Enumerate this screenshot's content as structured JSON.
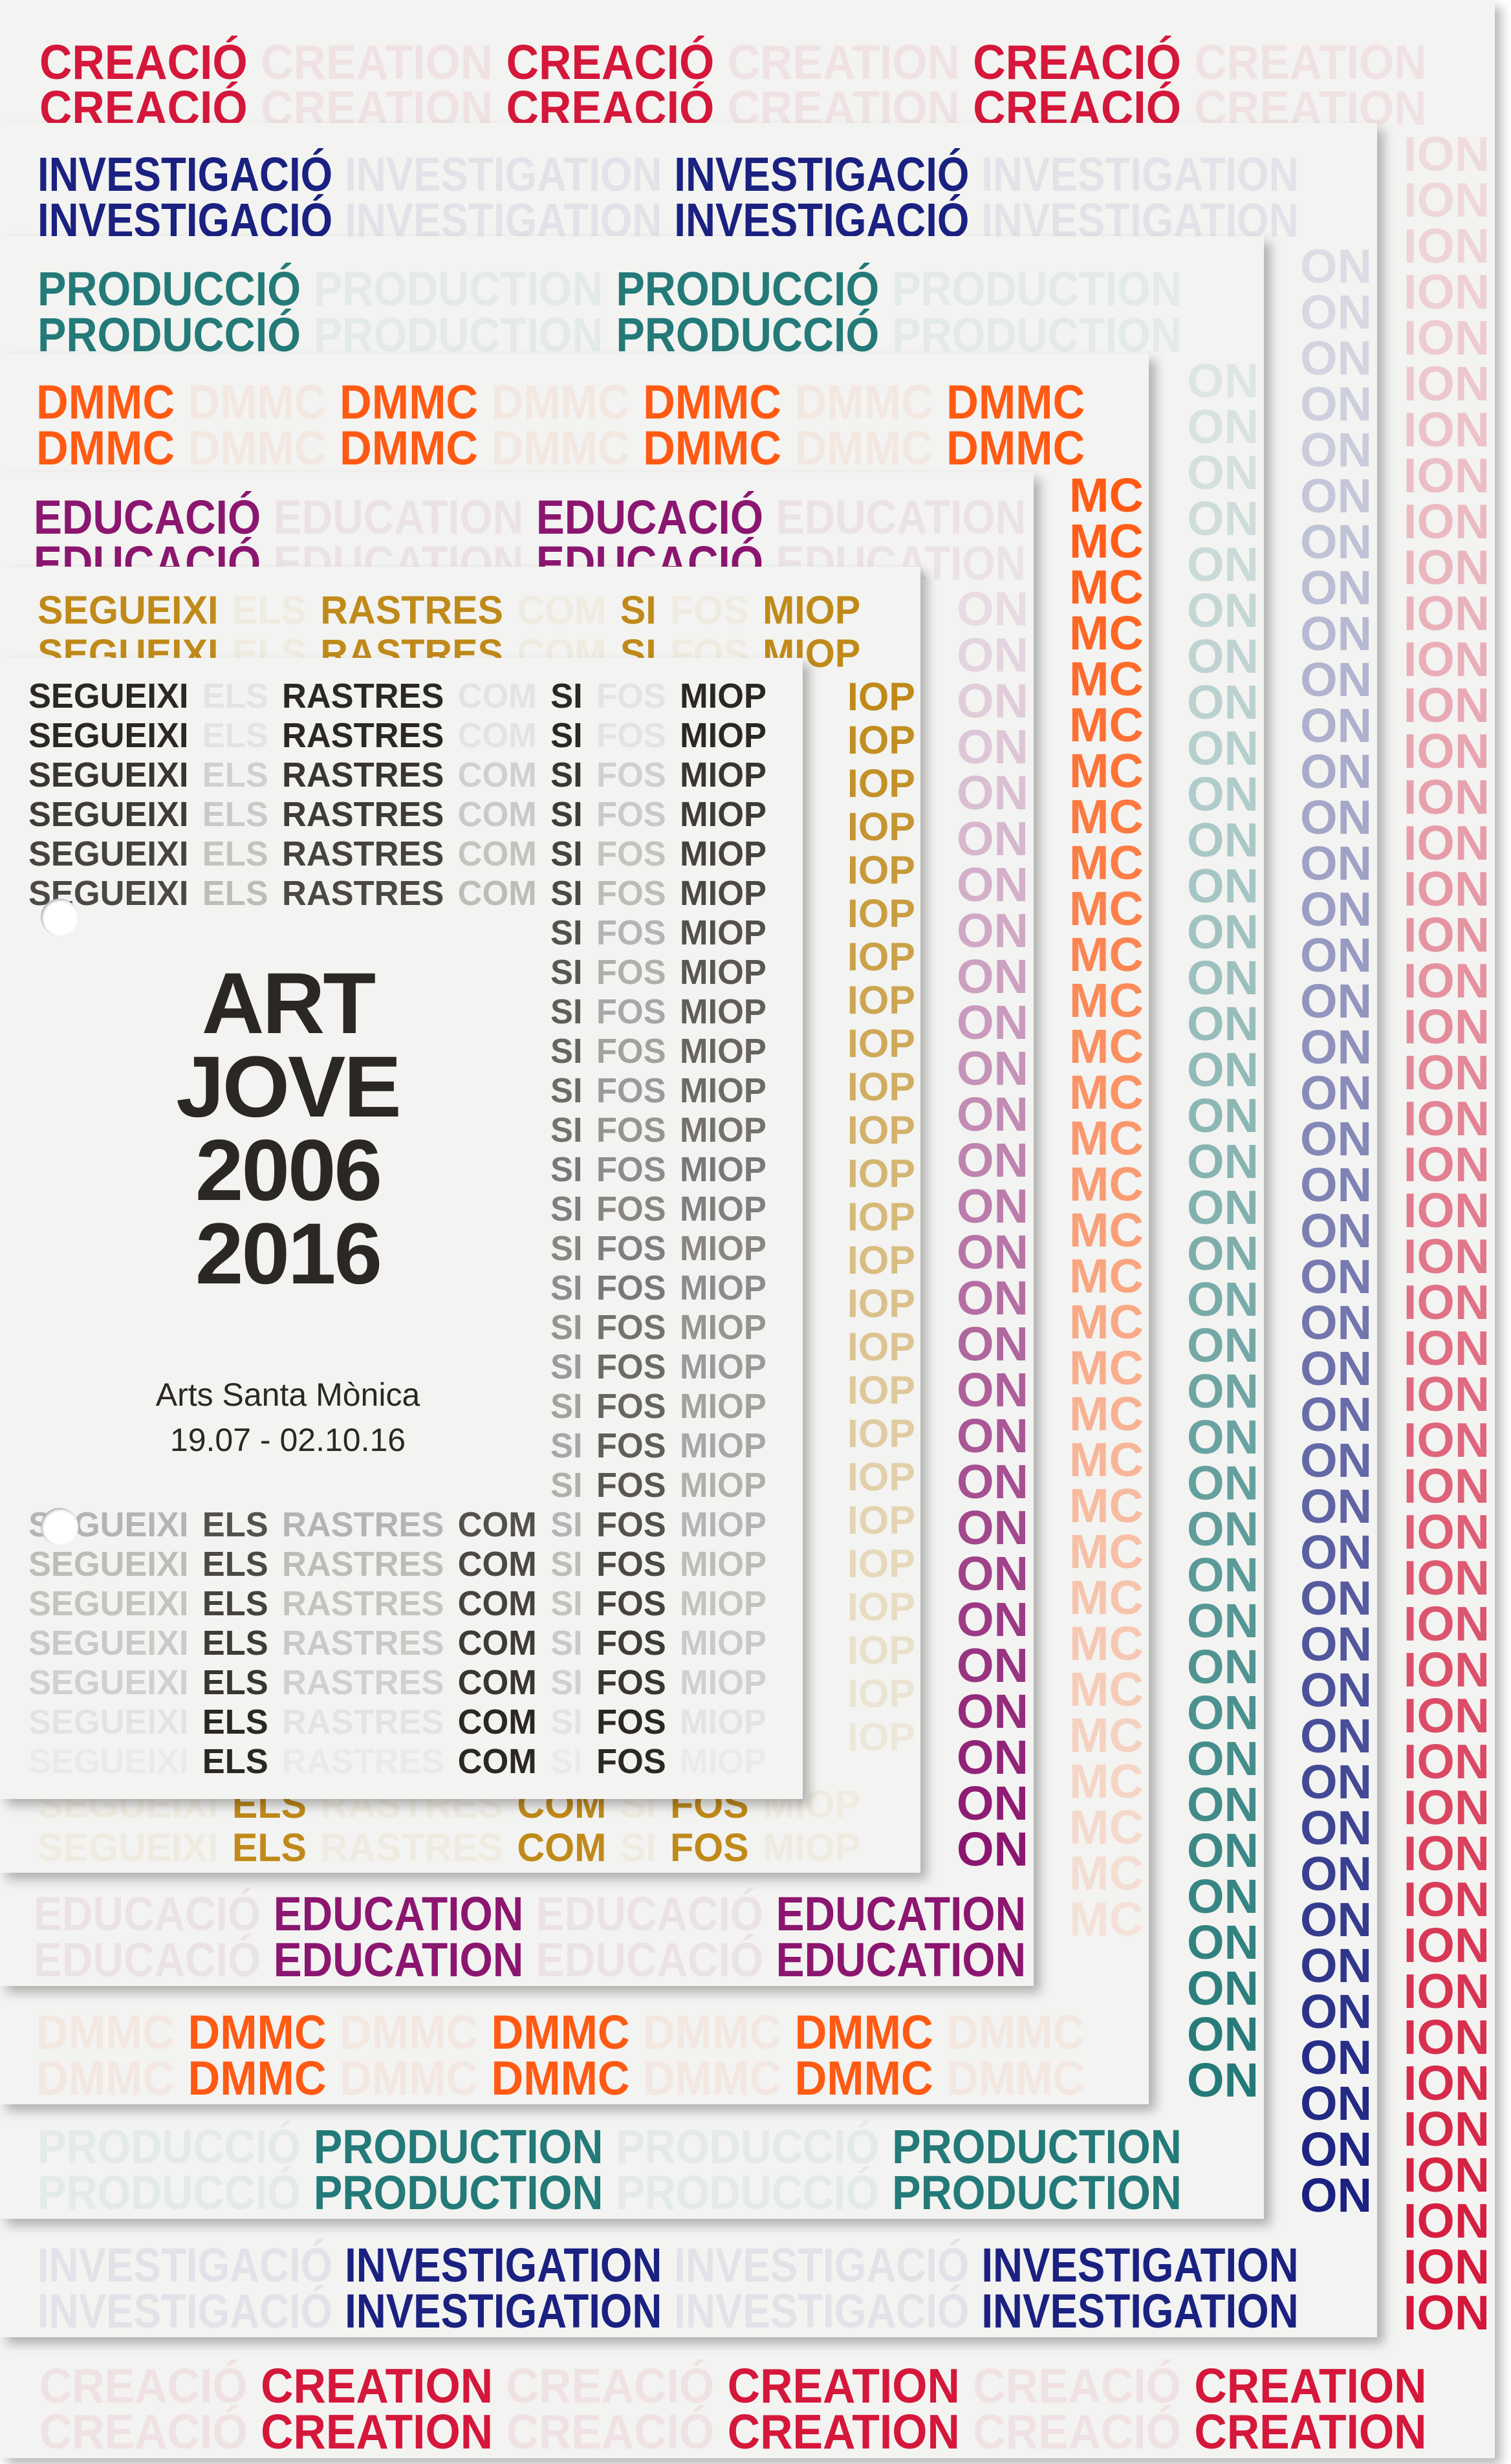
{
  "cards": [
    {
      "id": "c1",
      "name": "creacio-card",
      "color": "#d4173a",
      "words": [
        "CREACIÓ",
        "CREATION",
        "CREACIÓ",
        "CREATION",
        "CREACIÓ",
        "CREATION"
      ],
      "groupA": [
        0,
        2,
        4
      ]
    },
    {
      "id": "c2",
      "name": "investigacio-card",
      "color": "#1a2180",
      "words": [
        "INVESTIGACIÓ",
        "INVESTIGATION",
        "INVESTIGACIÓ",
        "INVESTIGATION"
      ],
      "groupA": [
        0,
        2
      ]
    },
    {
      "id": "c3",
      "name": "produccio-card",
      "color": "#237a78",
      "words": [
        "PRODUCCIÓ",
        "PRODUCTION",
        "PRODUCCIÓ",
        "PRODUCTION"
      ],
      "groupA": [
        0,
        2
      ]
    },
    {
      "id": "c4",
      "name": "dmmc-card",
      "color": "#ff5a14",
      "words": [
        "DMMC",
        "DMMC",
        "DMMC",
        "DMMC",
        "DMMC",
        "DMMC",
        "DMMC"
      ],
      "groupA": [
        0,
        2,
        4,
        6
      ]
    },
    {
      "id": "c5",
      "name": "educacio-card",
      "color": "#8b1670",
      "words": [
        "EDUCACIÓ",
        "EDUCATION",
        "EDUCACIÓ",
        "EDUCATION"
      ],
      "groupA": [
        0,
        2
      ]
    },
    {
      "id": "c6",
      "name": "segueixi-gold-card",
      "color": "#c08a1a",
      "words": [
        "SEGUEIXI",
        "ELS",
        "RASTRES",
        "COM",
        "SI",
        "FOS",
        "MIOP"
      ],
      "groupA": [
        0,
        2,
        4,
        6
      ]
    },
    {
      "id": "c7",
      "name": "art-jove-cover-card",
      "color": "#2b2725",
      "words": [
        "SEGUEIXI",
        "ELS",
        "RASTRES",
        "COM",
        "SI",
        "FOS",
        "MIOP"
      ],
      "groupA": [
        0,
        2,
        4,
        6
      ],
      "hideLeft": 4
    }
  ],
  "cover": {
    "title": [
      "ART",
      "JOVE",
      "2006",
      "2016"
    ],
    "venue": "Arts Santa Mònica",
    "dates": "19.07 - 02.10.16"
  }
}
